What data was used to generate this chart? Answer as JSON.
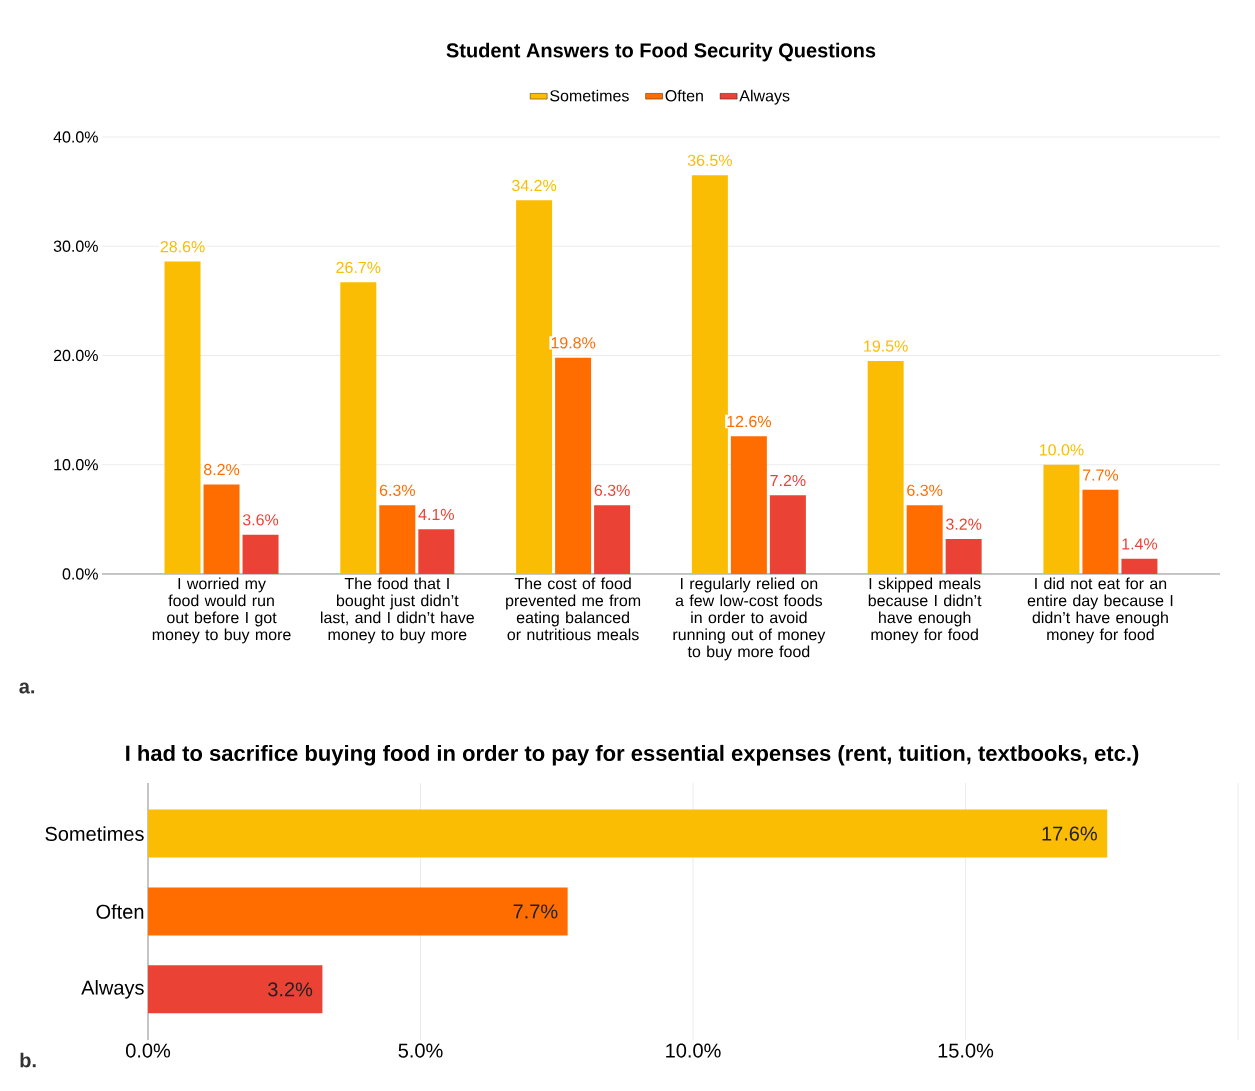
{
  "chart_data": [
    {
      "type": "bar",
      "title": "Student Answers to Food Security Questions",
      "categories": [
        "I worried my food would run out before I got money to buy more",
        "The food that I bought just didn’t last, and I didn’t have money to buy more",
        "The cost of food prevented me from eating balanced or nutritious meals",
        "I regularly relied on a few low-cost foods in order to avoid running out of money to buy more food",
        "I skipped meals because I didn’t have enough money for food",
        "I did not eat for an entire day because I didn’t have enough money for food"
      ],
      "series": [
        {
          "name": "Sometimes",
          "color": "#fbbc04",
          "values": [
            28.6,
            26.7,
            34.2,
            36.5,
            19.5,
            10.0
          ],
          "value_labels": [
            "28.6%",
            "26.7%",
            "34.2%",
            "36.5%",
            "19.5%",
            "10.0%"
          ]
        },
        {
          "name": "Often",
          "color": "#ff6d01",
          "values": [
            8.2,
            6.3,
            19.8,
            12.6,
            6.3,
            7.7
          ],
          "value_labels": [
            "8.2%",
            "6.3%",
            "19.8%",
            "12.6%",
            "6.3%",
            "7.7%"
          ]
        },
        {
          "name": "Always",
          "color": "#ea4335",
          "values": [
            3.6,
            4.1,
            6.3,
            7.2,
            3.2,
            1.4
          ],
          "value_labels": [
            "3.6%",
            "4.1%",
            "6.3%",
            "7.2%",
            "3.2%",
            "1.4%"
          ]
        }
      ],
      "ylim": [
        0,
        40
      ],
      "yticks": [
        {
          "value": 0,
          "label": "0.0%"
        },
        {
          "value": 10,
          "label": "10.0%"
        },
        {
          "value": 20,
          "label": "20.0%"
        },
        {
          "value": 30,
          "label": "30.0%"
        },
        {
          "value": 40,
          "label": "40.0%"
        }
      ],
      "grid": "y",
      "legend": "top",
      "annotations": [
        "a."
      ]
    },
    {
      "type": "bar",
      "orientation": "horizontal",
      "title": "I had to sacrifice buying food in order to pay for essential expenses (rent, tuition, textbooks, etc.)",
      "categories": [
        "Sometimes",
        "Often",
        "Always"
      ],
      "values": [
        17.6,
        7.7,
        3.2
      ],
      "colors": [
        "#fbbc04",
        "#ff6d01",
        "#ea4335"
      ],
      "value_labels": [
        "17.6%",
        "7.7%",
        "3.2%"
      ],
      "xlim": [
        0,
        20
      ],
      "xticks": [
        {
          "value": 0,
          "label": "0.0%"
        },
        {
          "value": 5,
          "label": "5.0%"
        },
        {
          "value": 10,
          "label": "10.0%"
        },
        {
          "value": 15,
          "label": "15.0%"
        },
        {
          "value": 20,
          "label": null
        }
      ],
      "grid": "x",
      "annotations": [
        "b."
      ]
    }
  ]
}
